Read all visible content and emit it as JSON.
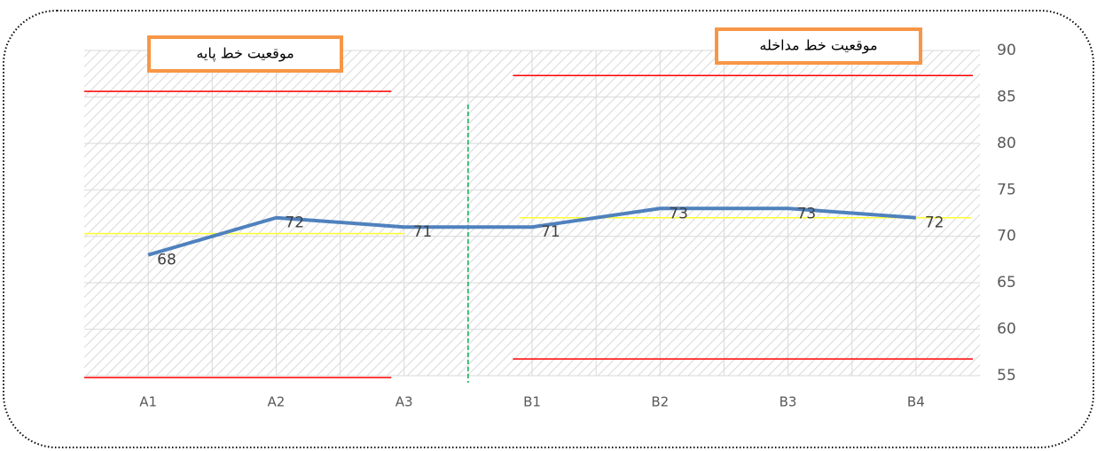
{
  "chart_data": {
    "type": "line",
    "phases": [
      {
        "label": "موقعیت خط پایه",
        "categories": [
          "A1",
          "A2",
          "A3"
        ],
        "values": [
          68,
          72,
          71
        ],
        "upper": 85.6,
        "lower": 54.8,
        "mean": 70.3
      },
      {
        "label": "موقعیت خط مداخله",
        "categories": [
          "B1",
          "B2",
          "B3",
          "B4"
        ],
        "values": [
          71,
          73,
          73,
          72
        ],
        "upper": 87.3,
        "lower": 56.8,
        "mean": 72
      }
    ],
    "color": "#4f81bd",
    "limit_color": "#ff0000",
    "mean_color": "#ffff33",
    "divider_color": "#00b050",
    "ylim": [
      55,
      90
    ],
    "yticks": [
      55,
      60,
      65,
      70,
      75,
      80,
      85,
      90
    ],
    "grid": true
  }
}
